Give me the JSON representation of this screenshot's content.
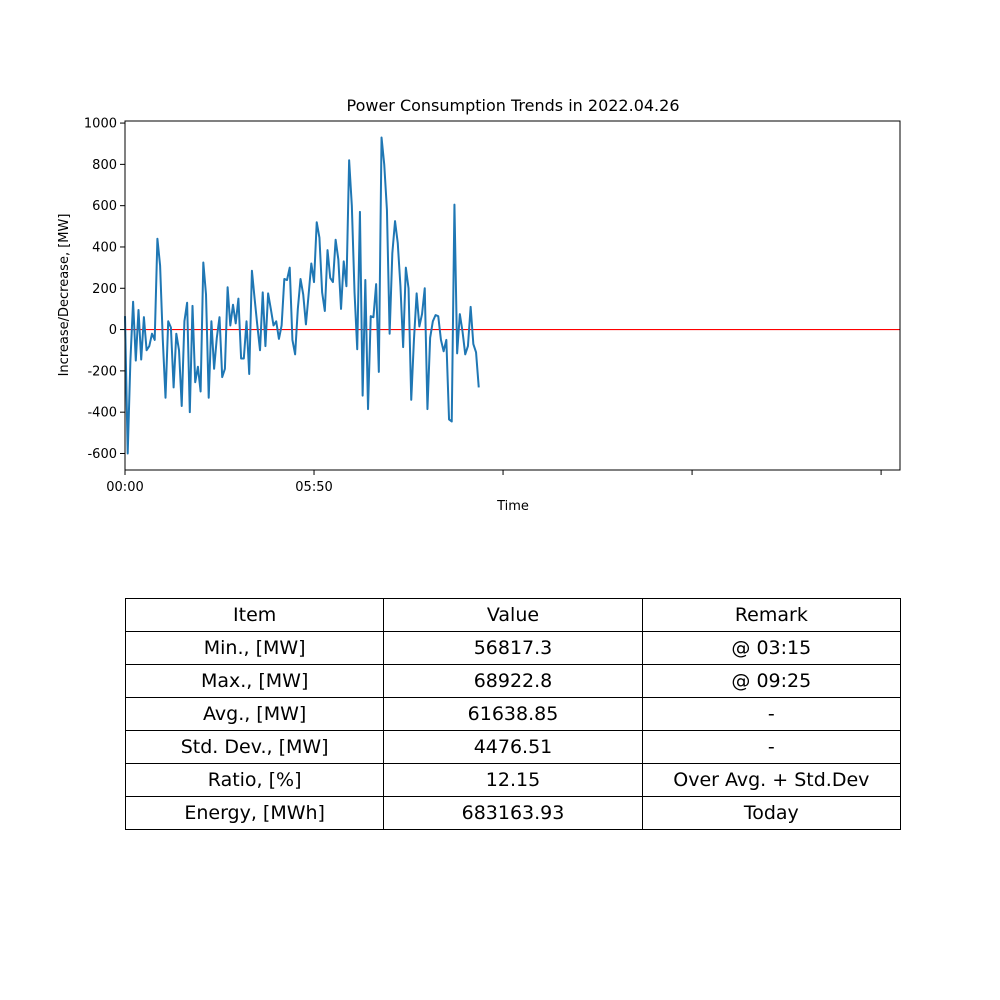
{
  "chart_data": {
    "type": "line",
    "title": "Power Consumption Trends in 2022.04.26",
    "xlabel": "Time",
    "ylabel": "Increase/Decrease, [MW]",
    "x_ticks": [
      "00:00",
      "05:50",
      "",
      "",
      ""
    ],
    "x_tick_index": [
      0,
      70,
      140,
      210,
      280
    ],
    "xlim": [
      0,
      287
    ],
    "ylim": [
      -680,
      1010
    ],
    "y_ticks": [
      -600,
      -400,
      -200,
      0,
      200,
      400,
      600,
      800,
      1000
    ],
    "grid": false,
    "line_color": "#1f77b4",
    "reference_line": {
      "y": 0,
      "color": "#ff0000"
    },
    "series": [
      {
        "values": [
          65,
          -600,
          -150,
          135,
          -150,
          95,
          -145,
          60,
          -100,
          -80,
          -20,
          -50,
          440,
          310,
          -50,
          -330,
          40,
          10,
          -280,
          -20,
          -100,
          -370,
          40,
          130,
          -400,
          115,
          -255,
          -180,
          -300,
          325,
          170,
          -330,
          40,
          -190,
          -40,
          60,
          -230,
          -190,
          205,
          20,
          120,
          30,
          150,
          -140,
          -140,
          40,
          -215,
          285,
          150,
          20,
          -100,
          180,
          -80,
          175,
          100,
          20,
          40,
          -45,
          20,
          245,
          240,
          300,
          -50,
          -120,
          100,
          245,
          170,
          25,
          170,
          320,
          230,
          520,
          445,
          180,
          90,
          385,
          250,
          230,
          435,
          340,
          100,
          330,
          210,
          820,
          600,
          180,
          -95,
          570,
          -320,
          240,
          -385,
          65,
          60,
          220,
          -205,
          930,
          800,
          580,
          -20,
          370,
          525,
          420,
          210,
          -85,
          300,
          200,
          -340,
          -50,
          175,
          15,
          75,
          200,
          -385,
          -40,
          40,
          70,
          65,
          -50,
          -105,
          -50,
          -435,
          -445,
          605,
          -115,
          75,
          -10,
          -120,
          -80,
          110,
          -70,
          -110,
          -280
        ]
      }
    ]
  },
  "stats_table": {
    "header": [
      "Item",
      "Value",
      "Remark"
    ],
    "rows": [
      [
        "Min., [MW]",
        "56817.3",
        "@ 03:15"
      ],
      [
        "Max., [MW]",
        "68922.8",
        "@ 09:25"
      ],
      [
        "Avg., [MW]",
        "61638.85",
        "-"
      ],
      [
        "Std. Dev., [MW]",
        "4476.51",
        "-"
      ],
      [
        "Ratio, [%]",
        "12.15",
        "Over Avg. + Std.Dev"
      ],
      [
        "Energy, [MWh]",
        "683163.93",
        "Today"
      ]
    ]
  }
}
